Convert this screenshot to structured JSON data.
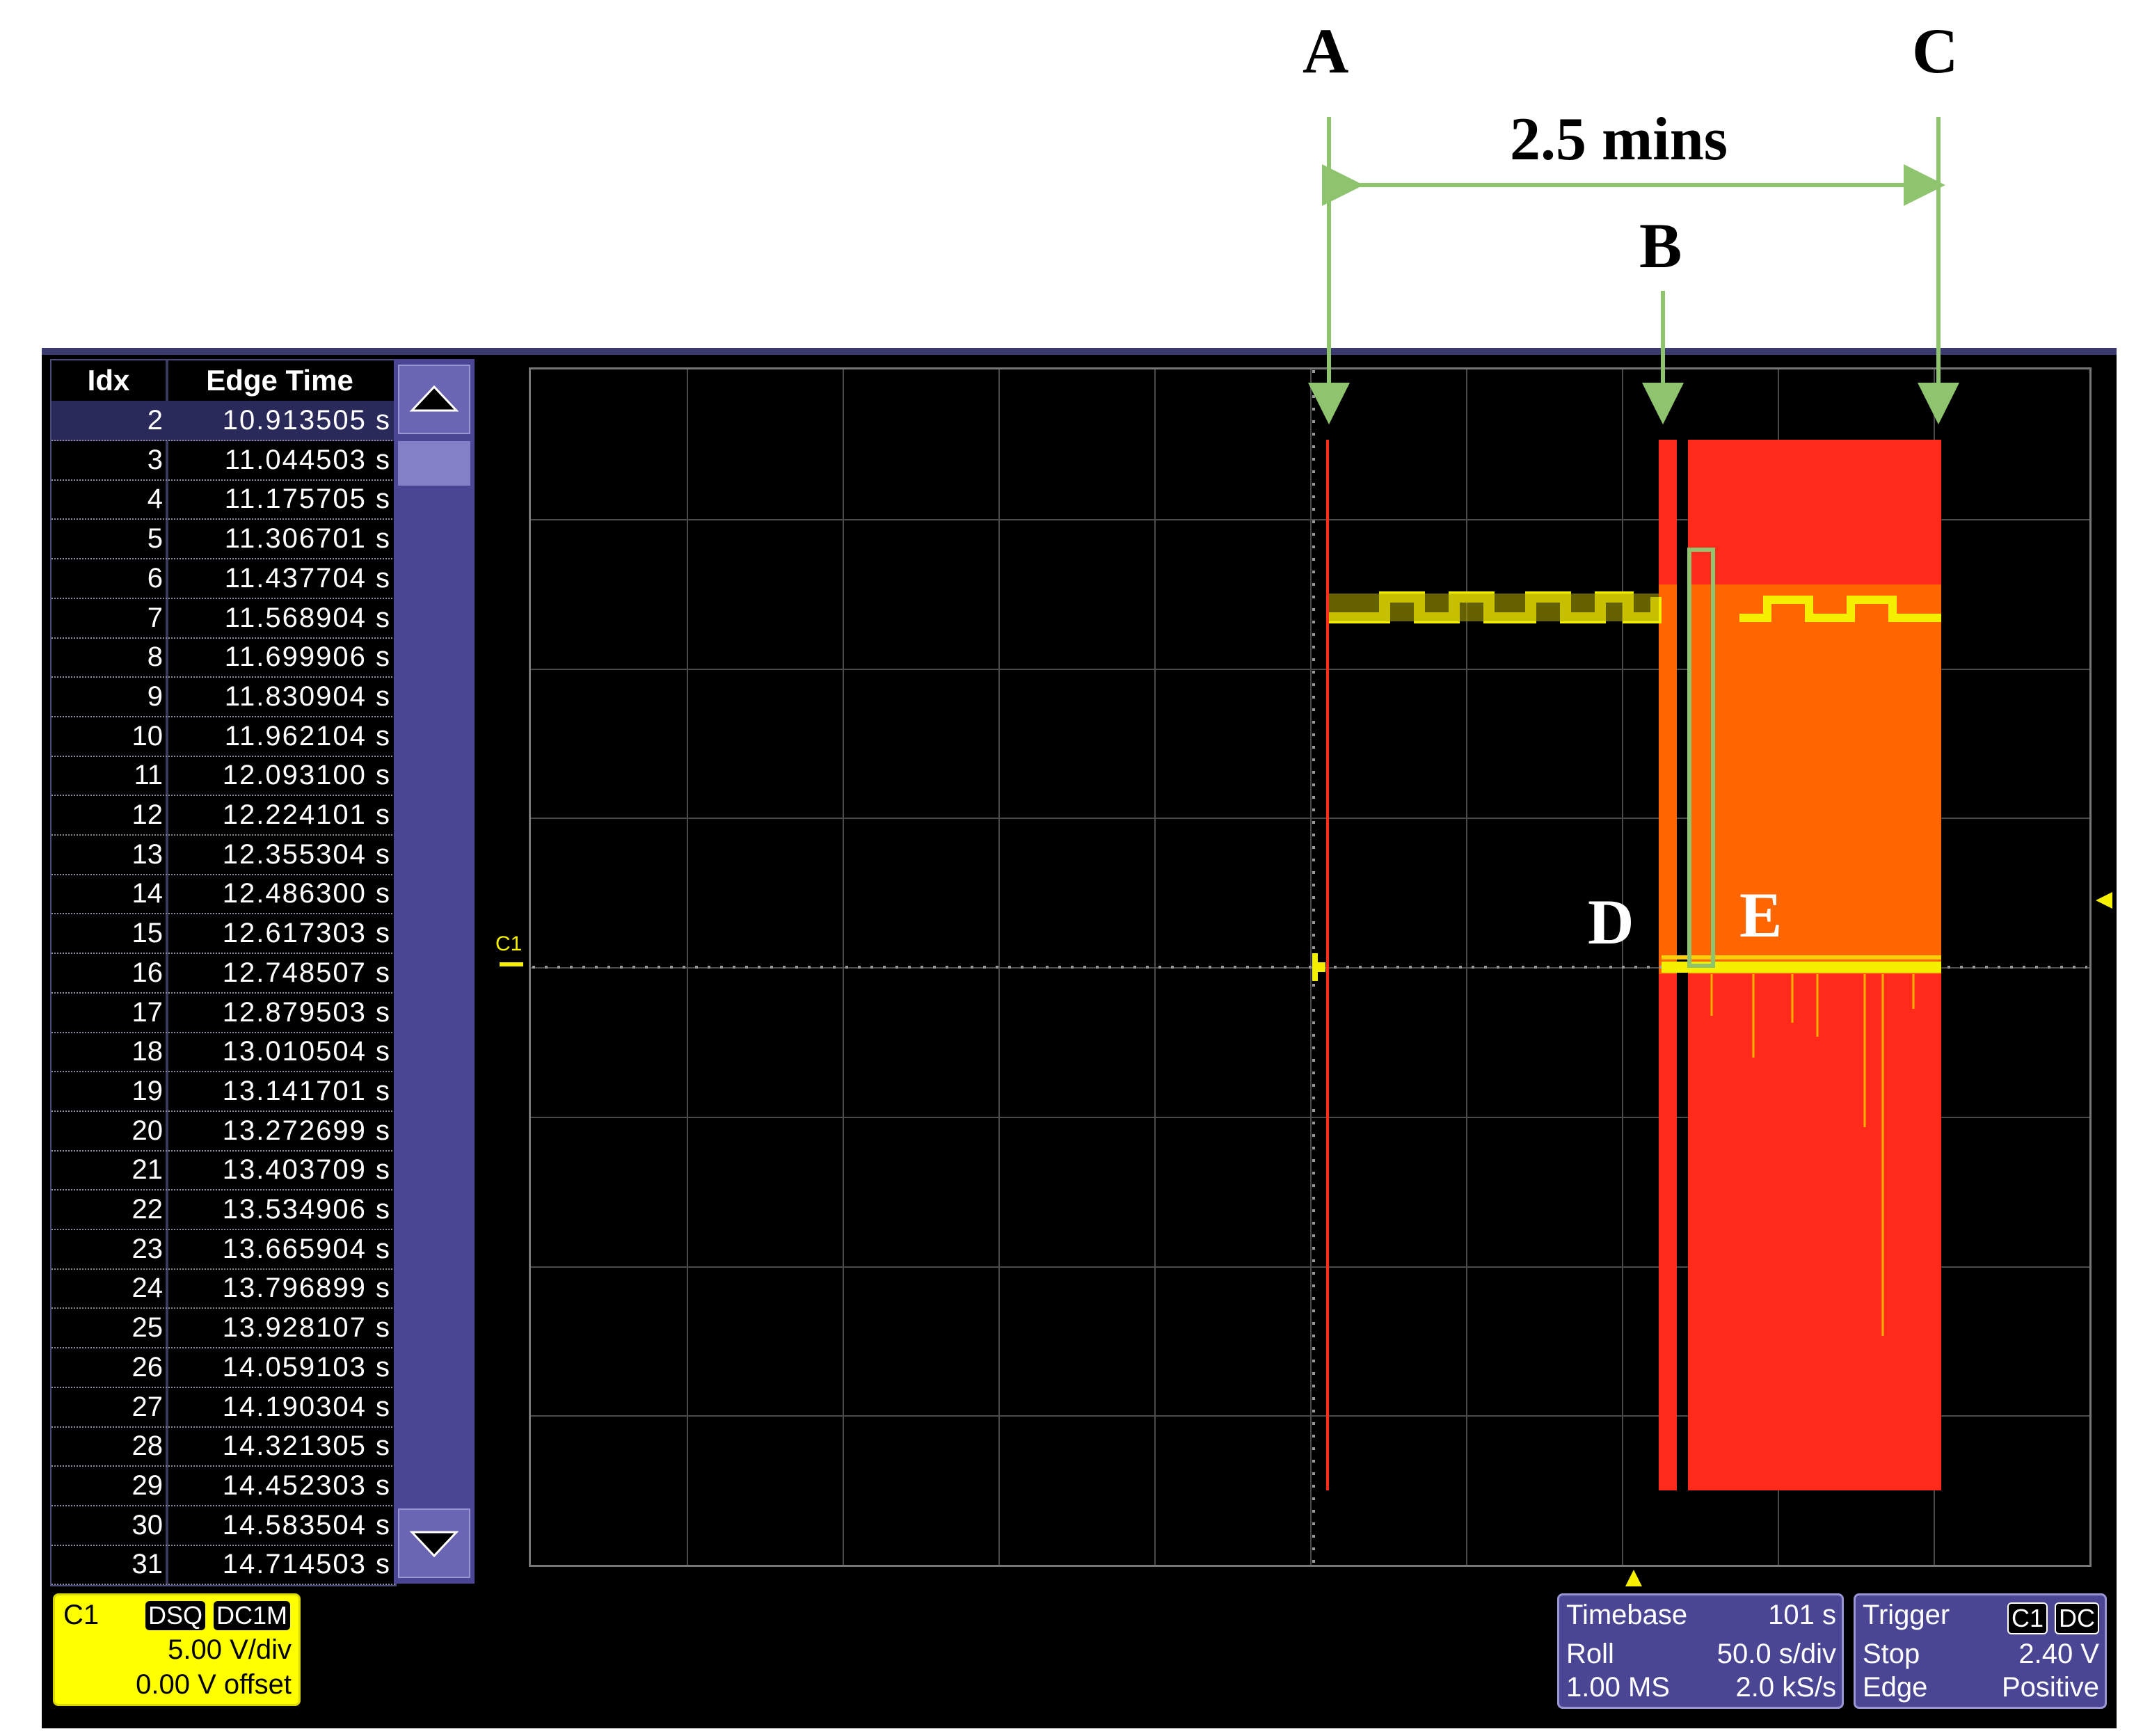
{
  "annotations": {
    "A": "A",
    "B": "B",
    "C": "C",
    "D": "D",
    "E": "E",
    "span": "2.5 mins"
  },
  "table": {
    "headers": {
      "idx": "Idx",
      "edge_time": "Edge Time"
    },
    "rows": [
      {
        "idx": "2",
        "time": "10.913505 s"
      },
      {
        "idx": "3",
        "time": "11.044503 s"
      },
      {
        "idx": "4",
        "time": "11.175705 s"
      },
      {
        "idx": "5",
        "time": "11.306701 s"
      },
      {
        "idx": "6",
        "time": "11.437704 s"
      },
      {
        "idx": "7",
        "time": "11.568904 s"
      },
      {
        "idx": "8",
        "time": "11.699906 s"
      },
      {
        "idx": "9",
        "time": "11.830904 s"
      },
      {
        "idx": "10",
        "time": "11.962104 s"
      },
      {
        "idx": "11",
        "time": "12.093100 s"
      },
      {
        "idx": "12",
        "time": "12.224101 s"
      },
      {
        "idx": "13",
        "time": "12.355304 s"
      },
      {
        "idx": "14",
        "time": "12.486300 s"
      },
      {
        "idx": "15",
        "time": "12.617303 s"
      },
      {
        "idx": "16",
        "time": "12.748507 s"
      },
      {
        "idx": "17",
        "time": "12.879503 s"
      },
      {
        "idx": "18",
        "time": "13.010504 s"
      },
      {
        "idx": "19",
        "time": "13.141701 s"
      },
      {
        "idx": "20",
        "time": "13.272699 s"
      },
      {
        "idx": "21",
        "time": "13.403709 s"
      },
      {
        "idx": "22",
        "time": "13.534906 s"
      },
      {
        "idx": "23",
        "time": "13.665904 s"
      },
      {
        "idx": "24",
        "time": "13.796899 s"
      },
      {
        "idx": "25",
        "time": "13.928107 s"
      },
      {
        "idx": "26",
        "time": "14.059103 s"
      },
      {
        "idx": "27",
        "time": "14.190304 s"
      },
      {
        "idx": "28",
        "time": "14.321305 s"
      },
      {
        "idx": "29",
        "time": "14.452303 s"
      },
      {
        "idx": "30",
        "time": "14.583504 s"
      },
      {
        "idx": "31",
        "time": "14.714503 s"
      }
    ]
  },
  "channel": {
    "name": "C1",
    "badges": [
      "DSQ",
      "DC1M"
    ],
    "scale": "5.00 V/div",
    "offset": "0.00 V offset",
    "trace_label": "C1"
  },
  "timebase": {
    "title": "Timebase",
    "value": "101 s",
    "mode": "Roll",
    "per_div": "50.0 s/div",
    "samples": "1.00 MS",
    "rate": "2.0 kS/s"
  },
  "trigger": {
    "title": "Trigger",
    "badges": [
      "C1",
      "DC"
    ],
    "state": "Stop",
    "level": "2.40 V",
    "type": "Edge",
    "slope": "Positive"
  },
  "colors": {
    "trace": "#f5f000",
    "fault": "#ff2a1a",
    "fault_overlap": "#ff6600",
    "arrow": "#8fc46f",
    "panel": "#4b4694",
    "channel_box": "#ffff00"
  }
}
